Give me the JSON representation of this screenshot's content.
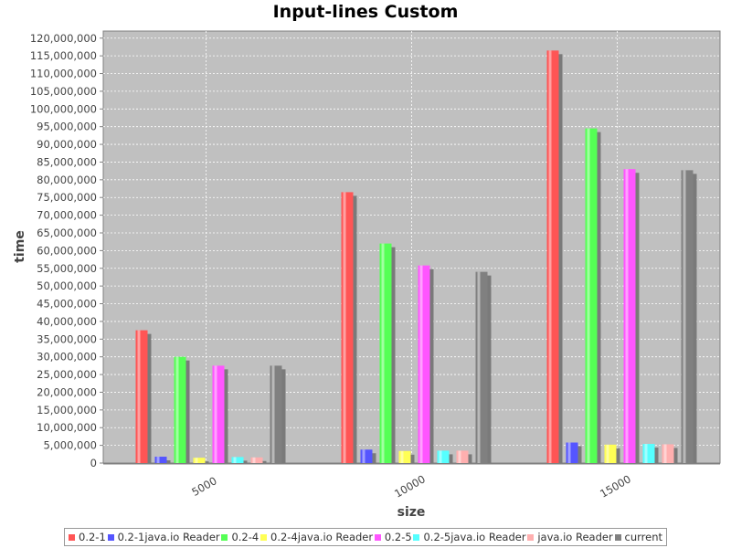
{
  "chart_data": {
    "type": "bar",
    "title": "Input-lines Custom",
    "xlabel": "size",
    "ylabel": "time",
    "categories": [
      "5000",
      "10000",
      "15000"
    ],
    "ylim": [
      0,
      122000000
    ],
    "yticks": [
      0,
      5000000,
      10000000,
      15000000,
      20000000,
      25000000,
      30000000,
      35000000,
      40000000,
      45000000,
      50000000,
      55000000,
      60000000,
      65000000,
      70000000,
      75000000,
      80000000,
      85000000,
      90000000,
      95000000,
      100000000,
      105000000,
      110000000,
      115000000,
      120000000
    ],
    "grid": true,
    "legend_position": "bottom",
    "series": [
      {
        "name": "0.2-1",
        "color": "#ff5555",
        "values": [
          37500000,
          76500000,
          116500000
        ]
      },
      {
        "name": "0.2-1java.io Reader",
        "color": "#5555ff",
        "values": [
          1800000,
          3800000,
          5800000
        ]
      },
      {
        "name": "0.2-4",
        "color": "#55ff55",
        "values": [
          30000000,
          62000000,
          94500000
        ]
      },
      {
        "name": "0.2-4java.io Reader",
        "color": "#ffff55",
        "values": [
          1500000,
          3400000,
          5200000
        ]
      },
      {
        "name": "0.2-5",
        "color": "#ff55ff",
        "values": [
          27500000,
          55800000,
          83000000
        ]
      },
      {
        "name": "0.2-5java.io Reader",
        "color": "#55ffff",
        "values": [
          1700000,
          3500000,
          5400000
        ]
      },
      {
        "name": "java.io Reader",
        "color": "#ffafaf",
        "values": [
          1600000,
          3500000,
          5300000
        ]
      },
      {
        "name": "current",
        "color": "#808080",
        "values": [
          27500000,
          54000000,
          82700000
        ]
      }
    ]
  }
}
